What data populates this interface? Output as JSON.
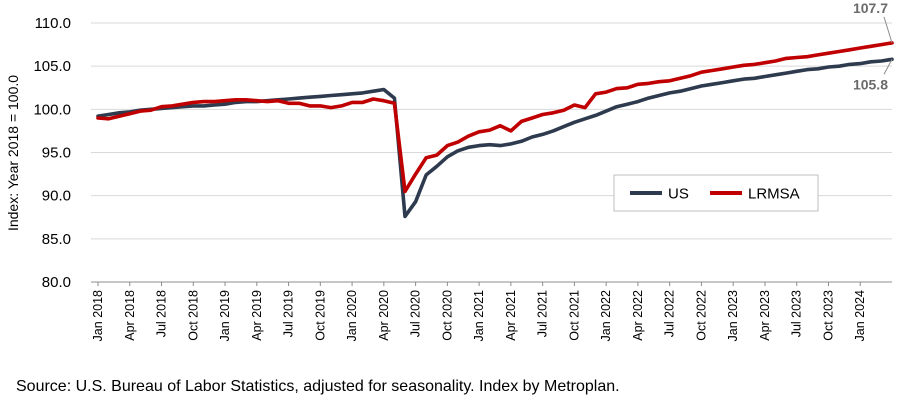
{
  "chart_data": {
    "type": "line",
    "title": "",
    "ylabel": "Index: Year 2018 = 100.0",
    "xlabel": "",
    "ylim": [
      80,
      110
    ],
    "y_ticks": [
      "80.0",
      "85.0",
      "90.0",
      "95.0",
      "100.0",
      "105.0",
      "110.0"
    ],
    "x_tick_labels": [
      "Jan 2018",
      "Apr 2018",
      "Jul 2018",
      "Oct 2018",
      "Jan 2019",
      "Apr 2019",
      "Jul 2019",
      "Oct 2019",
      "Jan 2020",
      "Apr 2020",
      "Jul 2020",
      "Oct 2020",
      "Jan 2021",
      "Apr 2021",
      "Jul 2021",
      "Oct 2021",
      "Jan 2022",
      "Apr 2022",
      "Jul 2022",
      "Oct 2022",
      "Jan 2023",
      "Apr 2023",
      "Jul 2023",
      "Oct 2023",
      "Jan 2024"
    ],
    "grid": "horizontal",
    "legend_position": "right, lower-middle",
    "series": [
      {
        "name": "US",
        "color": "#2e3a4d",
        "end_label": "105.8",
        "values": [
          99.2,
          99.4,
          99.6,
          99.7,
          99.9,
          100.0,
          100.1,
          100.2,
          100.3,
          100.4,
          100.4,
          100.5,
          100.6,
          100.8,
          100.9,
          100.9,
          101.0,
          101.1,
          101.2,
          101.3,
          101.4,
          101.5,
          101.6,
          101.7,
          101.8,
          101.9,
          102.1,
          102.3,
          101.3,
          87.6,
          89.3,
          92.4,
          93.4,
          94.5,
          95.2,
          95.6,
          95.8,
          95.9,
          95.8,
          96.0,
          96.3,
          96.8,
          97.1,
          97.5,
          98.0,
          98.5,
          98.9,
          99.3,
          99.8,
          100.3,
          100.6,
          100.9,
          101.3,
          101.6,
          101.9,
          102.1,
          102.4,
          102.7,
          102.9,
          103.1,
          103.3,
          103.5,
          103.6,
          103.8,
          104.0,
          104.2,
          104.4,
          104.6,
          104.7,
          104.9,
          105.0,
          105.2,
          105.3,
          105.5,
          105.6,
          105.8
        ]
      },
      {
        "name": "LRMSA",
        "color": "#c00000",
        "end_label": "107.7",
        "values": [
          99.0,
          98.9,
          99.2,
          99.5,
          99.8,
          99.9,
          100.3,
          100.4,
          100.6,
          100.8,
          100.9,
          100.9,
          101.0,
          101.1,
          101.1,
          101.0,
          100.9,
          101.0,
          100.7,
          100.7,
          100.4,
          100.4,
          100.2,
          100.4,
          100.8,
          100.8,
          101.2,
          101.0,
          100.7,
          90.5,
          92.5,
          94.4,
          94.7,
          95.8,
          96.2,
          96.9,
          97.4,
          97.6,
          98.1,
          97.5,
          98.6,
          99.0,
          99.4,
          99.6,
          99.9,
          100.5,
          100.2,
          101.8,
          102.0,
          102.4,
          102.5,
          102.9,
          103.0,
          103.2,
          103.3,
          103.6,
          103.9,
          104.3,
          104.5,
          104.7,
          104.9,
          105.1,
          105.2,
          105.4,
          105.6,
          105.9,
          106.0,
          106.1,
          106.3,
          106.5,
          106.7,
          106.9,
          107.1,
          107.3,
          107.5,
          107.7
        ]
      }
    ]
  },
  "footer": {
    "source": "Source: U.S. Bureau of Labor Statistics, adjusted for seasonality. Index by Metroplan."
  }
}
